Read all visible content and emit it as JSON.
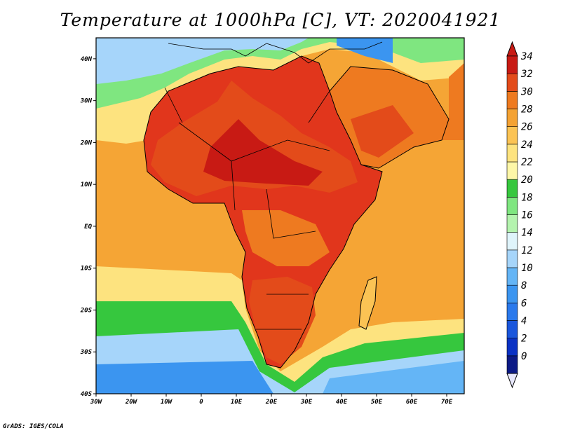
{
  "title": "Temperature at 1000hPa [C], VT: 2020041921",
  "credit": "GrADS: IGES/COLA",
  "map": {
    "lon_range": [
      -30,
      75
    ],
    "lat_range": [
      -40,
      45
    ],
    "lon_ticks": [
      "30W",
      "20W",
      "10W",
      "0",
      "10E",
      "20E",
      "30E",
      "40E",
      "50E",
      "60E",
      "70E"
    ],
    "lat_ticks": [
      "40S",
      "30S",
      "20S",
      "10S",
      "EQ",
      "10N",
      "20N",
      "30N",
      "40N"
    ],
    "ocean_color": "#f5a535",
    "land_color": "#e1361c"
  },
  "colorbar": {
    "labels": [
      "0",
      "2",
      "4",
      "6",
      "8",
      "10",
      "12",
      "14",
      "16",
      "18",
      "20",
      "22",
      "24",
      "26",
      "28",
      "30",
      "32",
      "34"
    ],
    "colors": [
      "#0c1a86",
      "#0a31c4",
      "#1a56dc",
      "#2a79ec",
      "#3b95f0",
      "#64b5f6",
      "#a6d5fa",
      "#dff4fb",
      "#b4f3ae",
      "#7fe680",
      "#36c73e",
      "#fdf7a8",
      "#fde37f",
      "#fbc354",
      "#f4a233",
      "#ee7a20",
      "#e34b1a",
      "#c81a14"
    ],
    "low_color": "#e8e8fc"
  }
}
